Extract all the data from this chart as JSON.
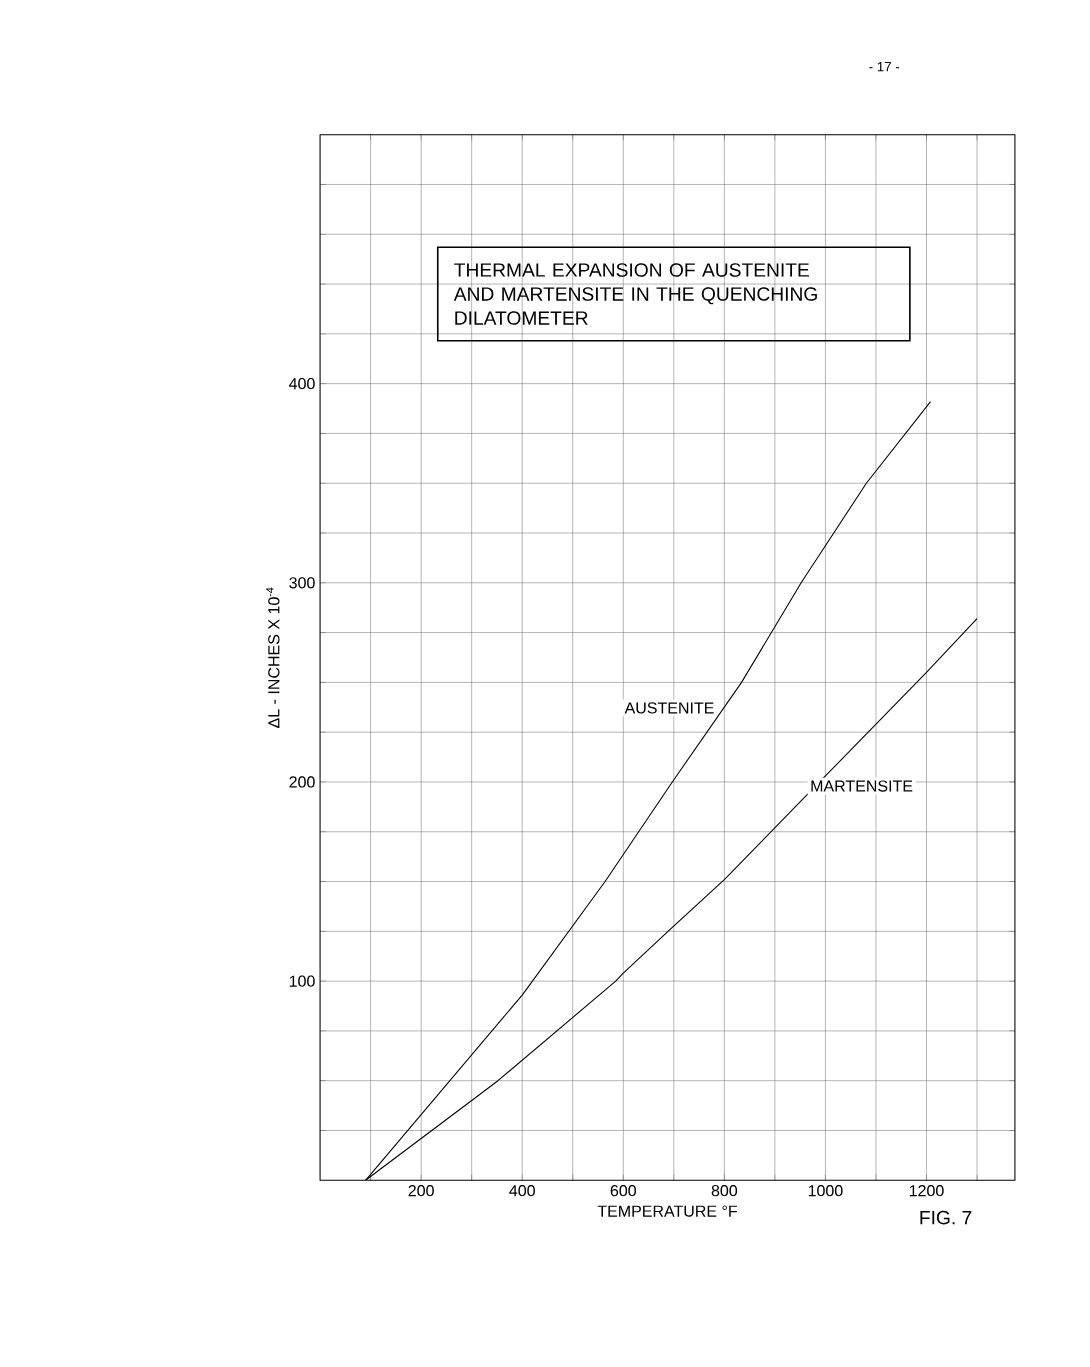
{
  "chart_data": {
    "type": "line",
    "title": "THERMAL EXPANSION OF AUSTENITE AND MARTENSITE IN THE QUENCHING DILATOMETER",
    "xlabel": "TEMPERATURE °F",
    "ylabel": "ΔL - INCHES X 10$^{-4}$",
    "annotations": [
      "- 17 -",
      "FIG. 7"
    ],
    "xlim": [
      0,
      1375
    ],
    "ylim": [
      0,
      525
    ],
    "xticks": [
      {
        "value": 100,
        "label": null
      },
      200,
      {
        "value": 300,
        "label": null
      },
      400,
      {
        "value": 500,
        "label": null
      },
      600,
      {
        "value": 700,
        "label": null
      },
      800,
      {
        "value": 900,
        "label": null
      },
      1000,
      {
        "value": 1100,
        "label": null
      },
      1200,
      {
        "value": 1300,
        "label": null
      }
    ],
    "yticks": [
      {
        "value": 25,
        "label": null
      },
      {
        "value": 50,
        "label": null
      },
      {
        "value": 75,
        "label": null
      },
      100,
      {
        "value": 125,
        "label": null
      },
      {
        "value": 150,
        "label": null
      },
      {
        "value": 175,
        "label": null
      },
      200,
      {
        "value": 225,
        "label": null
      },
      {
        "value": 250,
        "label": null
      },
      {
        "value": 275,
        "label": null
      },
      300,
      {
        "value": 325,
        "label": null
      },
      {
        "value": 350,
        "label": null
      },
      {
        "value": 375,
        "label": null
      },
      400,
      {
        "value": 425,
        "label": null
      },
      {
        "value": 450,
        "label": null
      },
      {
        "value": 475,
        "label": null
      },
      {
        "value": 500,
        "label": null
      }
    ],
    "grid": true,
    "legend": false,
    "marker": "none",
    "line_style": "solid",
    "series": [
      {
        "name": "AUSTENITE",
        "color": "#000000",
        "x": [
          90,
          200,
          400,
          564,
          697,
          834,
          952,
          1081,
          1208
        ],
        "values": [
          0,
          33,
          93,
          150,
          200,
          250,
          300,
          350,
          391
        ]
      },
      {
        "name": "MARTENSITE",
        "color": "#000000",
        "x": [
          90,
          200,
          352,
          585,
          600,
          697,
          800,
          1000,
          1200,
          1300
        ],
        "values": [
          0,
          21,
          50,
          100,
          104,
          127,
          151,
          203,
          255,
          282
        ]
      }
    ]
  }
}
